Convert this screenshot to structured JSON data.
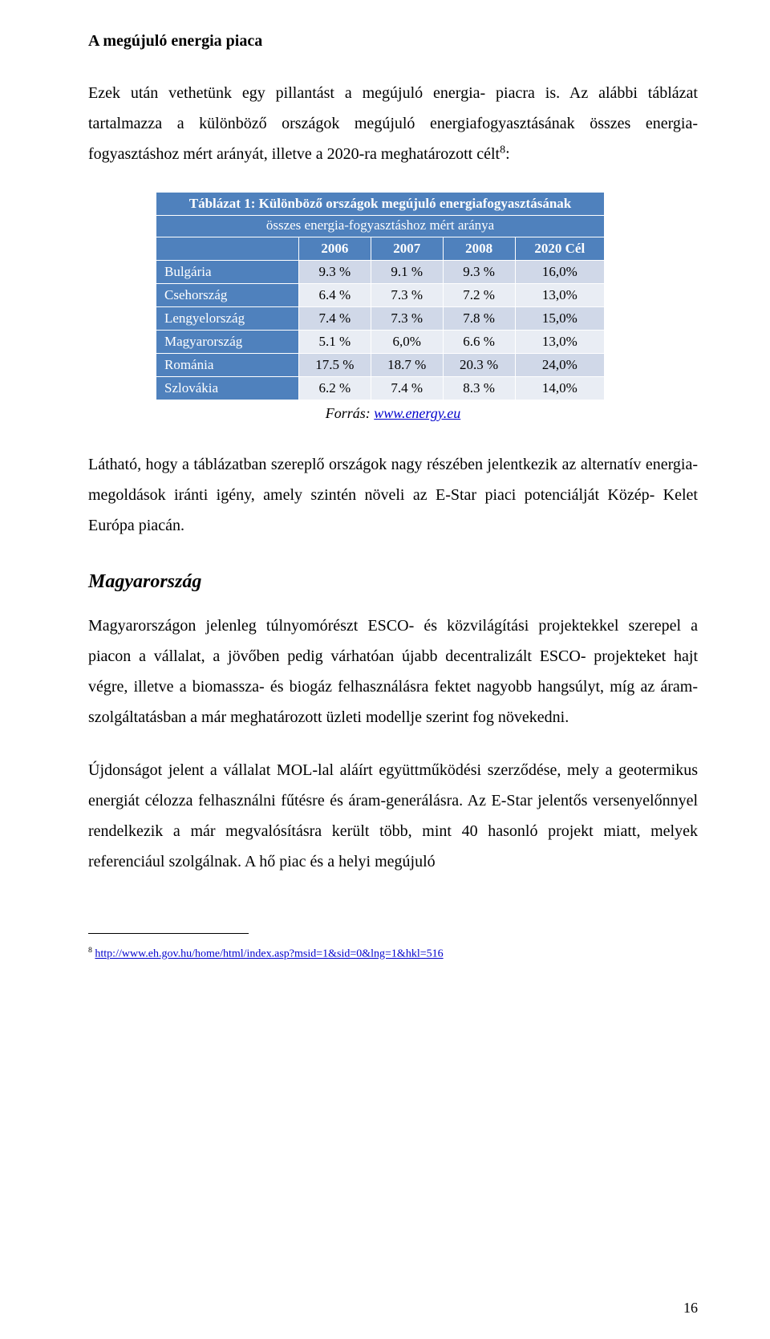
{
  "section_title": "A megújuló energia piaca",
  "para1_a": "Ezek után vethetünk egy pillantást a megújuló energia- piacra is. Az alábbi táblázat tartalmazza a különböző országok megújuló energiafogyasztásának összes energia-fogyasztáshoz mért arányát, illetve a 2020-ra meghatározott célt",
  "para1_sup": "8",
  "para1_b": ":",
  "table": {
    "caption_line1": "Táblázat 1: Különböző országok megújuló energiafogyasztásának",
    "caption_line2": "összes energia-fogyasztáshoz mért aránya",
    "col_headers": [
      "2006",
      "2007",
      "2008",
      "2020 Cél"
    ],
    "rows": [
      {
        "name": "Bulgária",
        "vals": [
          "9.3 %",
          "9.1 %",
          "9.3 %",
          "16,0%"
        ],
        "alt": false
      },
      {
        "name": "Csehország",
        "vals": [
          "6.4 %",
          "7.3 %",
          "7.2 %",
          "13,0%"
        ],
        "alt": true
      },
      {
        "name": "Lengyelország",
        "vals": [
          "7.4 %",
          "7.3 %",
          "7.8 %",
          "15,0%"
        ],
        "alt": false
      },
      {
        "name": "Magyarország",
        "vals": [
          "5.1 %",
          "6,0%",
          "6.6 %",
          "13,0%"
        ],
        "alt": true
      },
      {
        "name": "Románia",
        "vals": [
          "17.5 %",
          "18.7 %",
          "20.3 %",
          "24,0%"
        ],
        "alt": false
      },
      {
        "name": "Szlovákia",
        "vals": [
          "6.2 %",
          "7.4 %",
          "8.3 %",
          "14,0%"
        ],
        "alt": true
      }
    ]
  },
  "source_label": "Forrás: ",
  "source_link": "www.energy.eu",
  "para2": "Látható, hogy a táblázatban szereplő országok nagy részében jelentkezik az alternatív energia- megoldások iránti igény, amely szintén növeli az E-Star piaci potenciálját Közép- Kelet Európa piacán.",
  "subheading": "Magyarország",
  "para3": "Magyarországon jelenleg túlnyomórészt ESCO- és közvilágítási projektekkel szerepel a piacon a vállalat, a jövőben pedig várhatóan újabb decentralizált ESCO- projekteket hajt végre, illetve a biomassza- és biogáz felhasználásra fektet nagyobb hangsúlyt, míg az áram- szolgáltatásban a már meghatározott üzleti modellje szerint fog növekedni.",
  "para4": "Újdonságot jelent a vállalat MOL-lal aláírt együttműködési szerződése, mely a geotermikus energiát célozza felhasználni fűtésre és áram-generálásra. Az E-Star jelentős versenyelőnnyel rendelkezik a már megvalósításra került több, mint 40 hasonló projekt miatt, melyek referenciául szolgálnak. A hő piac és a helyi megújuló",
  "footnote_num": "8",
  "footnote_link": "http://www.eh.gov.hu/home/html/index.asp?msid=1&sid=0&lng=1&hkl=516",
  "page_number": "16"
}
